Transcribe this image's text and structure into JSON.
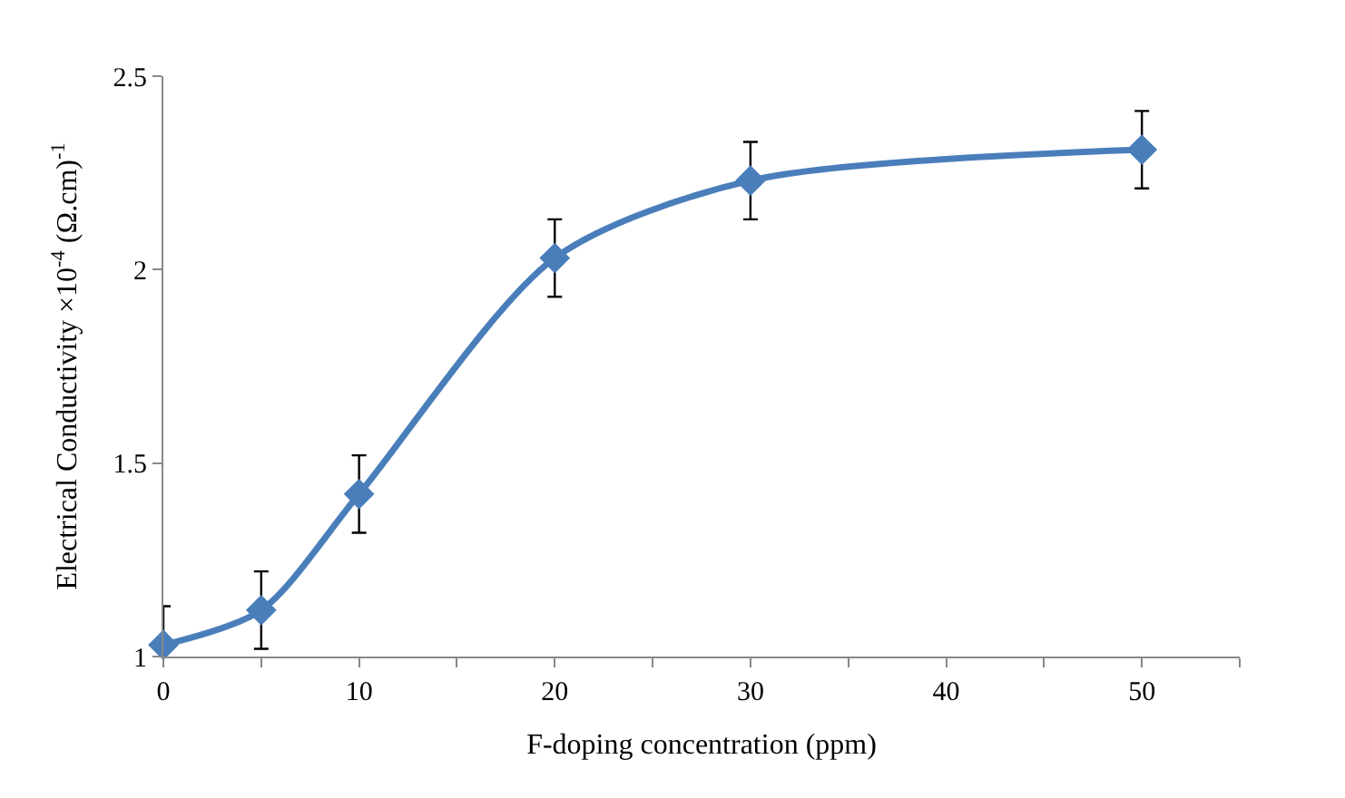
{
  "chart_data": {
    "type": "line",
    "xlabel": "F-doping concentration (ppm)",
    "ylabel": "Electrical Conductivity ×10$^{-4}$ (Ω.cm)$^{-1}$",
    "x": [
      0,
      5,
      10,
      20,
      30,
      50
    ],
    "series": [
      {
        "color": "#4a7ebb",
        "values": [
          1.03,
          1.12,
          1.42,
          2.03,
          2.23,
          2.31
        ],
        "errors": [
          0.1,
          0.1,
          0.1,
          0.1,
          0.1,
          0.1
        ]
      }
    ],
    "xlim": [
      0,
      55
    ],
    "xticks": [
      0,
      {
        "value": 5,
        "label": null
      },
      10,
      {
        "value": 15,
        "label": null
      },
      20,
      {
        "value": 25,
        "label": null
      },
      30,
      {
        "value": 35,
        "label": null
      },
      40,
      {
        "value": 45,
        "label": null
      },
      50,
      {
        "value": 55,
        "label": null
      }
    ],
    "ylim": [
      1,
      2.5
    ],
    "yticks": [
      1,
      1.5,
      2,
      2.5
    ],
    "legend": false,
    "marker": "diamond",
    "line_style": "solid"
  }
}
